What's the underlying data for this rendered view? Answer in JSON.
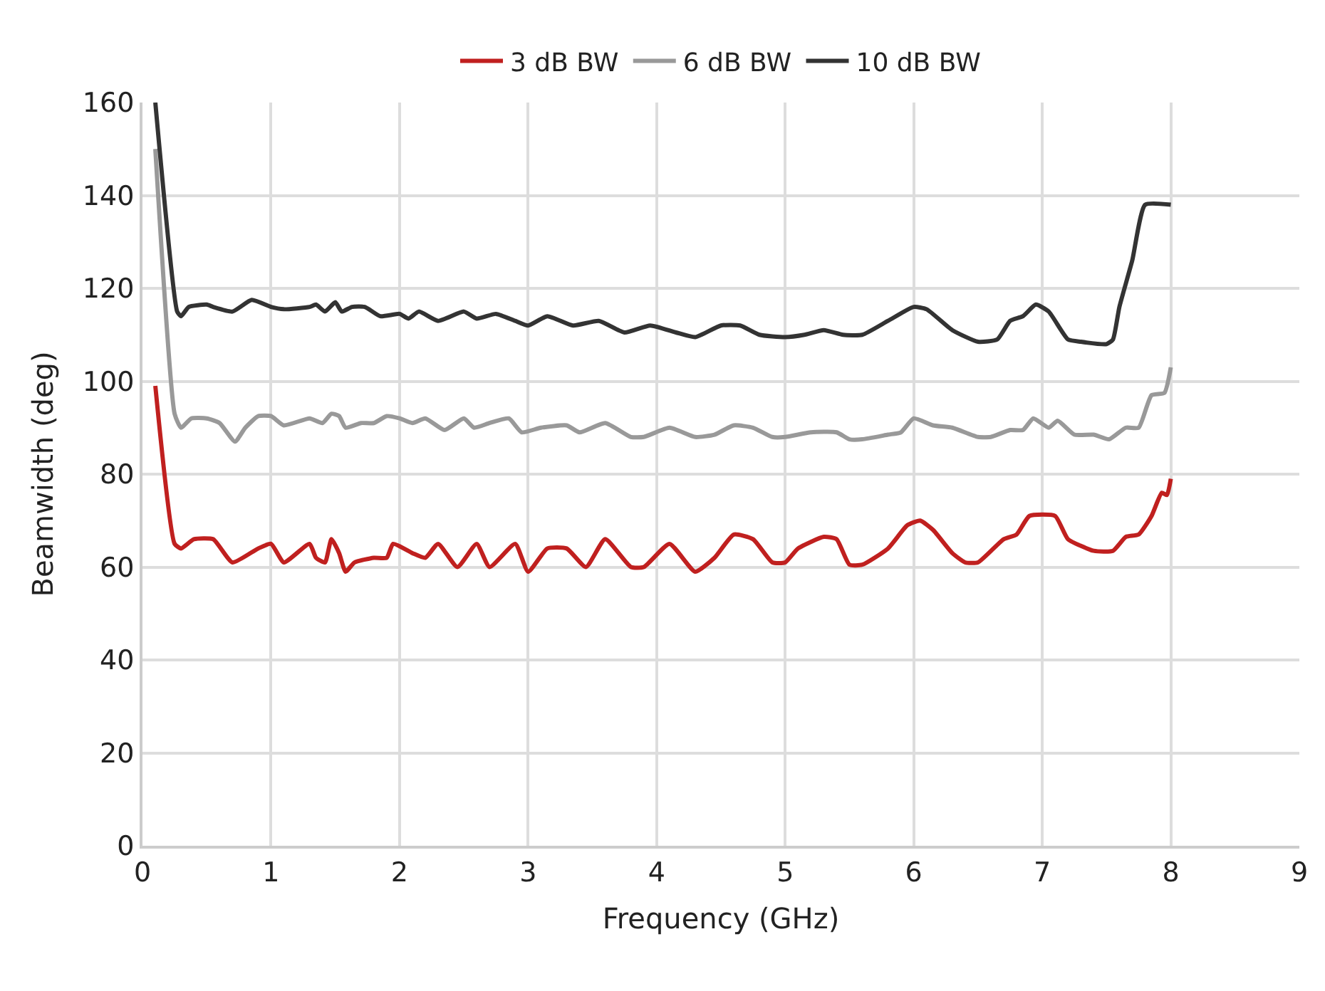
{
  "chart_data": {
    "type": "line",
    "xlabel": "Frequency (GHz)",
    "ylabel": "Beamwidth (deg)",
    "xlim": [
      0,
      9
    ],
    "xticks": [
      0,
      1,
      2,
      3,
      4,
      5,
      6,
      7,
      8,
      9
    ],
    "ylim": [
      0,
      160
    ],
    "yticks": [
      0,
      20,
      40,
      60,
      80,
      100,
      120,
      140,
      160
    ],
    "grid": true,
    "legend": "top",
    "marker": "none",
    "line_style": "solid",
    "series": [
      {
        "name": "3 dB BW",
        "color": "#c0201f",
        "x": [
          0.1,
          0.25,
          0.3,
          0.4,
          0.55,
          0.7,
          0.9,
          1.0,
          1.1,
          1.3,
          1.35,
          1.42,
          1.47,
          1.53,
          1.58,
          1.65,
          1.8,
          1.9,
          1.95,
          2.1,
          2.2,
          2.3,
          2.45,
          2.6,
          2.7,
          2.9,
          3.0,
          3.15,
          3.3,
          3.45,
          3.6,
          3.8,
          3.9,
          4.1,
          4.3,
          4.45,
          4.6,
          4.75,
          4.9,
          5.0,
          5.1,
          5.3,
          5.4,
          5.5,
          5.6,
          5.8,
          5.95,
          6.05,
          6.15,
          6.3,
          6.4,
          6.5,
          6.7,
          6.8,
          6.9,
          7.1,
          7.2,
          7.4,
          7.55,
          7.65,
          7.75,
          7.85,
          7.93,
          7.97,
          8.0
        ],
        "values": [
          99,
          65,
          64,
          66,
          66,
          61,
          64,
          65,
          61,
          65,
          62,
          61,
          66,
          63,
          59,
          61,
          62,
          62,
          65,
          63,
          62,
          65,
          60,
          65,
          60,
          65,
          59,
          64,
          64,
          60,
          66,
          60,
          60,
          65,
          59,
          62,
          67,
          66,
          61,
          61,
          64,
          66.5,
          66,
          60.5,
          60.5,
          64,
          69,
          70,
          68,
          63,
          61,
          61,
          66,
          67,
          71,
          71,
          66,
          63.5,
          63.5,
          66.5,
          67,
          71,
          76,
          75.5,
          79
        ]
      },
      {
        "name": "6 dB BW",
        "color": "#999999",
        "x": [
          0.1,
          0.25,
          0.3,
          0.38,
          0.5,
          0.6,
          0.72,
          0.8,
          0.9,
          1.0,
          1.1,
          1.3,
          1.4,
          1.47,
          1.53,
          1.58,
          1.7,
          1.8,
          1.9,
          2.0,
          2.1,
          2.2,
          2.35,
          2.5,
          2.58,
          2.7,
          2.85,
          2.95,
          3.1,
          3.3,
          3.4,
          3.6,
          3.8,
          3.9,
          4.1,
          4.3,
          4.45,
          4.6,
          4.75,
          4.9,
          5.0,
          5.2,
          5.4,
          5.5,
          5.6,
          5.8,
          5.9,
          6.0,
          6.15,
          6.3,
          6.5,
          6.6,
          6.75,
          6.85,
          6.93,
          7.05,
          7.12,
          7.25,
          7.4,
          7.52,
          7.65,
          7.75,
          7.85,
          7.95,
          8.0
        ],
        "values": [
          150,
          93,
          90,
          92,
          92,
          91,
          87,
          90,
          92.5,
          92.5,
          90.5,
          92,
          91,
          93,
          92.5,
          90,
          91,
          91,
          92.5,
          92,
          91,
          92,
          89.5,
          92,
          90,
          91,
          92,
          89,
          90,
          90.5,
          89,
          91,
          88,
          88,
          90,
          88,
          88.5,
          90.5,
          90,
          88,
          88,
          89,
          89,
          87.5,
          87.5,
          88.5,
          89,
          92,
          90.5,
          90,
          88,
          88,
          89.5,
          89.5,
          92,
          90,
          91.5,
          88.5,
          88.5,
          87.5,
          90,
          90,
          97,
          97.5,
          103
        ]
      },
      {
        "name": "10 dB BW",
        "color": "#333333",
        "x": [
          0.1,
          0.27,
          0.3,
          0.36,
          0.5,
          0.55,
          0.7,
          0.85,
          1.0,
          1.1,
          1.3,
          1.35,
          1.42,
          1.5,
          1.55,
          1.63,
          1.73,
          1.85,
          2.0,
          2.07,
          2.15,
          2.3,
          2.5,
          2.6,
          2.75,
          2.9,
          3.0,
          3.15,
          3.35,
          3.55,
          3.75,
          3.95,
          4.15,
          4.3,
          4.5,
          4.65,
          4.8,
          5.0,
          5.15,
          5.3,
          5.45,
          5.6,
          5.8,
          6.0,
          6.1,
          6.3,
          6.5,
          6.65,
          6.75,
          6.85,
          6.95,
          7.05,
          7.2,
          7.3,
          7.5,
          7.55,
          7.6,
          7.7,
          7.8,
          8.0
        ],
        "values": [
          160,
          115,
          114,
          116,
          116.5,
          116,
          115,
          117.5,
          116,
          115.5,
          116,
          116.5,
          115,
          117,
          115,
          116,
          116,
          114,
          114.5,
          113.5,
          115,
          113,
          115,
          113.5,
          114.5,
          113,
          112,
          114,
          112,
          113,
          110.5,
          112,
          110.5,
          109.5,
          112,
          112,
          110,
          109.5,
          110,
          111,
          110,
          110,
          113,
          116,
          115.5,
          111,
          108.5,
          109,
          113,
          114,
          116.5,
          115,
          109,
          108.5,
          108,
          109,
          116,
          126,
          138,
          138
        ]
      }
    ]
  }
}
